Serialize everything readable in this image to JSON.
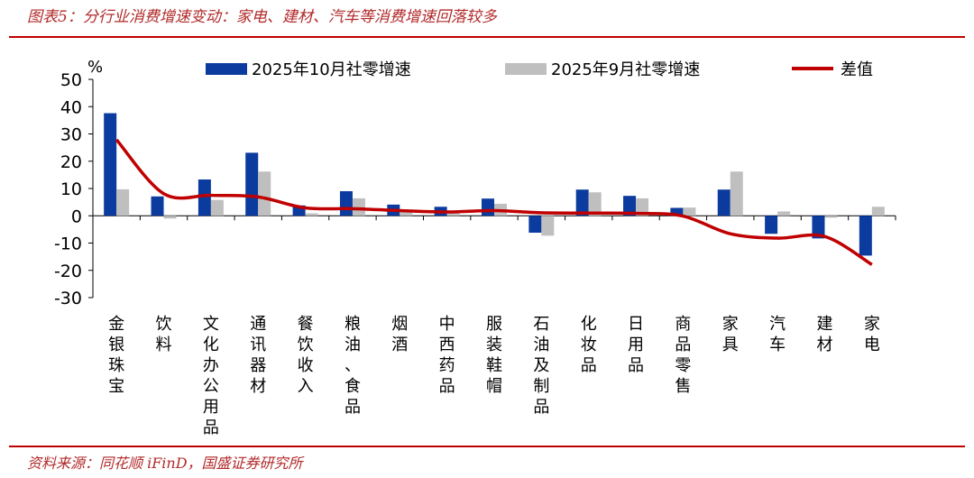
{
  "figure": {
    "title": "图表5：分行业消费增速变动：家电、建材、汽车等消费增速回落较多",
    "source": "资料来源：同花顺 iFinD，国盛证券研究所",
    "unit": "%"
  },
  "colors": {
    "oct": "#0b3b9e",
    "sep": "#bfbfbf",
    "diff": "#c00000",
    "accent": "#b22a2a"
  },
  "chart_data": {
    "type": "bar",
    "categories": [
      "金银珠宝",
      "饮料",
      "文化办公用品",
      "通讯器材",
      "餐饮收入",
      "粮油、食品",
      "烟酒",
      "中西药品",
      "服装鞋帽",
      "石油及制品",
      "化妆品",
      "日用品",
      "商品零售",
      "家具",
      "汽车",
      "建材",
      "家电"
    ],
    "series": [
      {
        "name": "2025年10月社零增速",
        "kind": "bar",
        "values": [
          37.6,
          7.1,
          13.3,
          23.1,
          3.8,
          9.0,
          4.1,
          3.3,
          6.3,
          -6.2,
          9.6,
          7.3,
          2.9,
          9.6,
          -6.6,
          -8.3,
          -14.6
        ]
      },
      {
        "name": "2025年9月社零增速",
        "kind": "bar",
        "values": [
          9.7,
          -1.0,
          5.8,
          16.2,
          0.9,
          6.4,
          2.2,
          1.9,
          4.4,
          -7.3,
          8.6,
          6.4,
          3.0,
          16.2,
          1.6,
          -0.7,
          3.3
        ]
      },
      {
        "name": "差值",
        "kind": "line",
        "values": [
          27.9,
          8.1,
          7.5,
          6.9,
          2.9,
          2.6,
          1.9,
          1.4,
          1.9,
          1.1,
          1.0,
          0.9,
          -0.1,
          -6.6,
          -8.2,
          -7.6,
          -17.9
        ]
      }
    ],
    "yticks": [
      50,
      40,
      30,
      20,
      10,
      0,
      -10,
      -20,
      -30
    ],
    "ylim": [
      -30,
      50
    ],
    "ylabel": "%",
    "legend": "top",
    "grid": false
  }
}
